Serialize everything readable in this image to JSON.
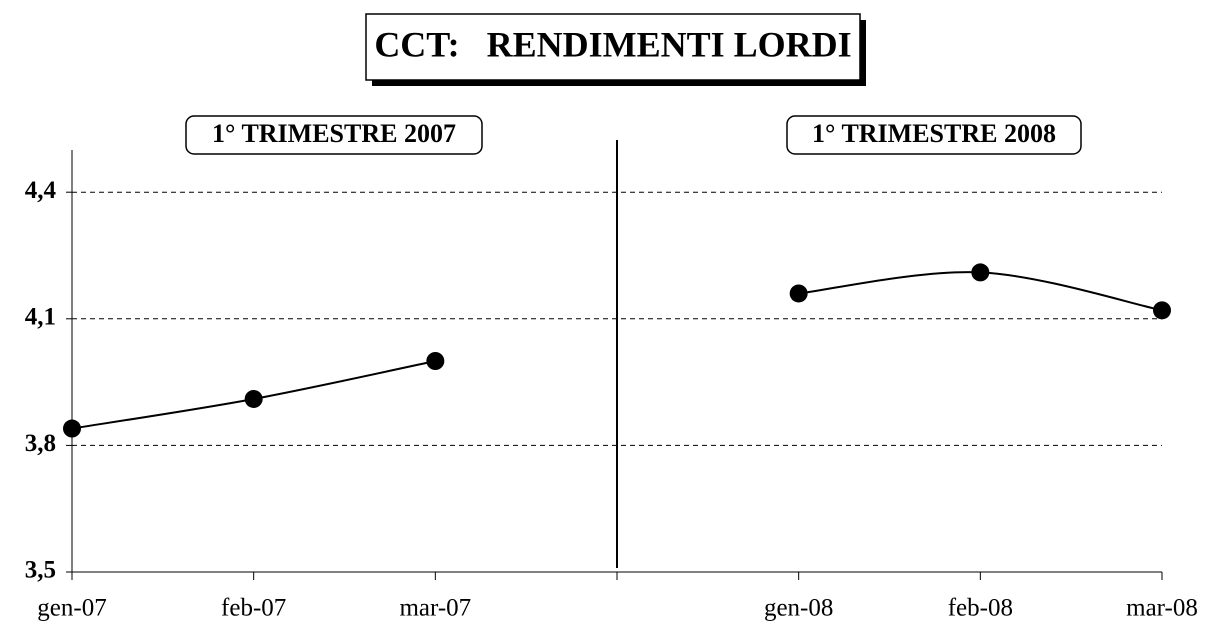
{
  "chart_data": {
    "type": "line",
    "title": "CCT:   RENDIMENTI LORDI",
    "annotations": [
      "1° TRIMESTRE 2007",
      "1° TRIMESTRE 2008"
    ],
    "categories": [
      "gen-07",
      "feb-07",
      "mar-07",
      null,
      "gen-08",
      "feb-08",
      "mar-08"
    ],
    "series": [
      {
        "color": "#000000",
        "values": [
          3.84,
          3.91,
          4.0,
          null,
          4.16,
          4.21,
          4.12
        ]
      }
    ],
    "ylim": [
      3.5,
      4.5
    ],
    "yticks": [
      {
        "value": 3.5,
        "label": "3,5"
      },
      {
        "value": 3.8,
        "label": "3,8"
      },
      {
        "value": 4.1,
        "label": "4,1"
      },
      {
        "value": 4.4,
        "label": "4,4"
      }
    ],
    "grid": true,
    "smooth": true
  }
}
